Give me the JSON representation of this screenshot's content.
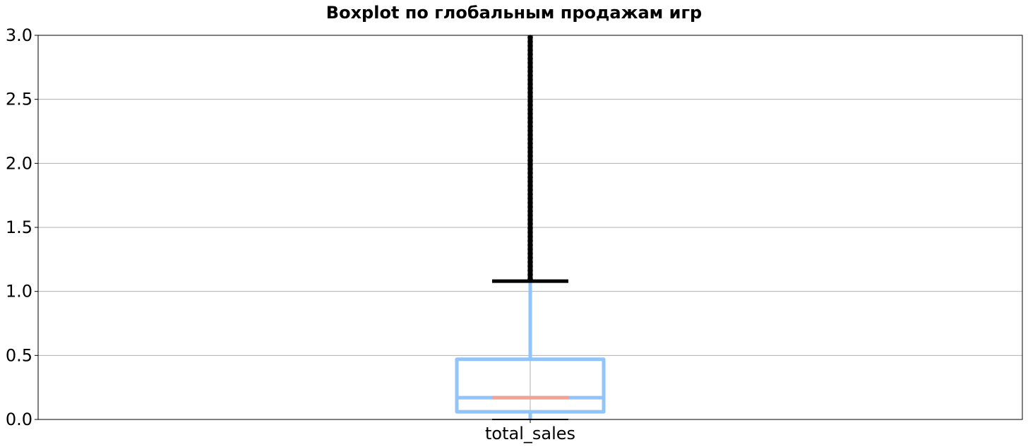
{
  "chart_data": {
    "type": "boxplot",
    "title": "Boxplot по глобальным продажам игр",
    "xlabel": "",
    "ylabel": "",
    "categories": [
      "total_sales"
    ],
    "ylim": [
      0,
      3.0
    ],
    "yticks": [
      "0.0",
      "0.5",
      "1.0",
      "1.5",
      "2.0",
      "2.5",
      "3.0"
    ],
    "grid": true,
    "boxes": [
      {
        "category": "total_sales",
        "whisker_low": 0.0,
        "q1": 0.06,
        "median": 0.17,
        "q3": 0.47,
        "whisker_high": 1.08,
        "outliers_from": 1.08,
        "outliers_to": 3.0
      }
    ],
    "colors": {
      "box": "#90c4fa",
      "median": "#f4a292",
      "caps": "#000000",
      "outliers": "#000000",
      "grid": "#b0b0b0"
    }
  }
}
